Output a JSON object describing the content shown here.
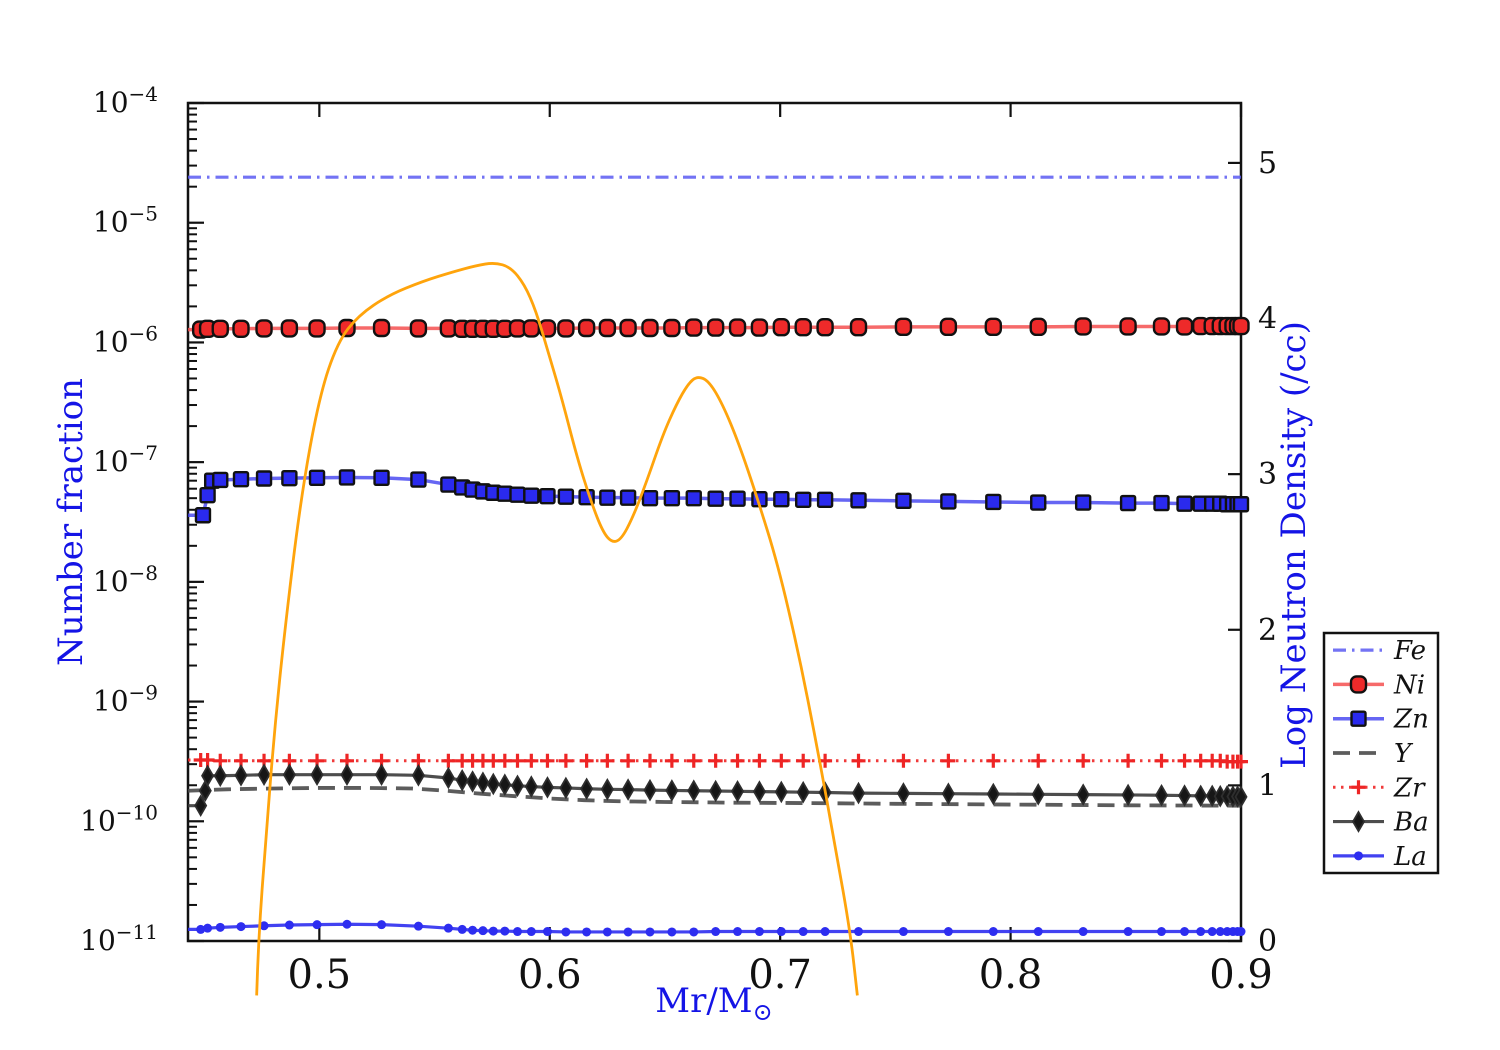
{
  "figure": {
    "background": "#ffffff"
  },
  "chart_data": {
    "type": "line",
    "title": "",
    "grid": false,
    "legend_position": "right-outside",
    "x_axis": {
      "label_main": "Mr/M",
      "label_sub": "⊙",
      "min": 0.443,
      "max": 0.9,
      "ticks": [
        0.5,
        0.6,
        0.7,
        0.8,
        0.9
      ],
      "tick_labels": [
        "0.5",
        "0.6",
        "0.7",
        "0.8",
        "0.9"
      ],
      "label_color": "#1414e6"
    },
    "y_axis_left": {
      "label": "Number fraction",
      "scale": "log",
      "min_exp": -11,
      "max_exp": -4,
      "tick_exponents": [
        -4,
        -5,
        -6,
        -7,
        -8,
        -9,
        -10,
        -11
      ],
      "label_color": "#1414e6"
    },
    "y_axis_right": {
      "label": "Log Neutron Density (/cc)",
      "scale": "linear",
      "min": 0,
      "max": 5.385,
      "ticks": [
        0,
        1,
        2,
        3,
        4,
        5
      ],
      "tick_labels": [
        "0",
        "1",
        "2",
        "3",
        "4",
        "5"
      ],
      "label_color": "#1414e6"
    },
    "series": [
      {
        "id": "fe",
        "name": "Fe",
        "axis": "left",
        "line": "dashdot",
        "marker": "none",
        "color": "#5b5bf2",
        "width": 3.2,
        "opacity": 0.85,
        "x": [
          0.443,
          0.9
        ],
        "y": [
          2.4e-05,
          2.4e-05
        ]
      },
      {
        "id": "ni",
        "name": "Ni",
        "axis": "left",
        "line": "solid",
        "marker": "circle",
        "color": "#f55050",
        "marker_color": "#ee2a2a",
        "edge_color": "#111111",
        "width": 3.5,
        "opacity": 0.85,
        "skip_first_marker": true,
        "x": [
          0.443,
          0.4485,
          0.4515,
          0.457,
          0.466,
          0.476,
          0.487,
          0.499,
          0.512,
          0.527,
          0.543,
          0.556,
          0.562,
          0.5665,
          0.571,
          0.5755,
          0.5805,
          0.586,
          0.592,
          0.599,
          0.607,
          0.616,
          0.625,
          0.634,
          0.6435,
          0.653,
          0.6625,
          0.672,
          0.6815,
          0.691,
          0.7005,
          0.71,
          0.7195,
          0.734,
          0.7535,
          0.773,
          0.7925,
          0.812,
          0.8315,
          0.851,
          0.8655,
          0.8755,
          0.8825,
          0.8875,
          0.891,
          0.894,
          0.8965,
          0.8985,
          0.9
        ],
        "y": [
          1.28e-06,
          1.28e-06,
          1.3e-06,
          1.3e-06,
          1.3e-06,
          1.31e-06,
          1.31e-06,
          1.31e-06,
          1.32e-06,
          1.32e-06,
          1.31e-06,
          1.31e-06,
          1.3e-06,
          1.3e-06,
          1.3e-06,
          1.3e-06,
          1.3e-06,
          1.31e-06,
          1.31e-06,
          1.31e-06,
          1.31e-06,
          1.32e-06,
          1.32e-06,
          1.32e-06,
          1.32e-06,
          1.32e-06,
          1.33e-06,
          1.33e-06,
          1.33e-06,
          1.33e-06,
          1.34e-06,
          1.34e-06,
          1.34e-06,
          1.34e-06,
          1.35e-06,
          1.35e-06,
          1.35e-06,
          1.35e-06,
          1.36e-06,
          1.36e-06,
          1.36e-06,
          1.36e-06,
          1.37e-06,
          1.37e-06,
          1.37e-06,
          1.37e-06,
          1.37e-06,
          1.37e-06,
          1.37e-06
        ]
      },
      {
        "id": "zn",
        "name": "Zn",
        "axis": "left",
        "line": "solid",
        "marker": "square",
        "color": "#4040f0",
        "marker_color": "#2a2aee",
        "edge_color": "#111111",
        "width": 3.5,
        "opacity": 0.8,
        "skip_first_marker": true,
        "x": [
          0.443,
          0.4495,
          0.4515,
          0.4535,
          0.457,
          0.466,
          0.476,
          0.487,
          0.499,
          0.512,
          0.527,
          0.543,
          0.556,
          0.562,
          0.5665,
          0.571,
          0.5755,
          0.5805,
          0.586,
          0.592,
          0.599,
          0.607,
          0.616,
          0.625,
          0.634,
          0.6435,
          0.653,
          0.6625,
          0.672,
          0.6815,
          0.691,
          0.7005,
          0.71,
          0.7195,
          0.734,
          0.7535,
          0.773,
          0.7925,
          0.812,
          0.8315,
          0.851,
          0.8655,
          0.8755,
          0.8825,
          0.8875,
          0.891,
          0.894,
          0.8965,
          0.8985,
          0.9
        ],
        "y": [
          3.6e-08,
          3.6e-08,
          5.3e-08,
          7e-08,
          7.1e-08,
          7.2e-08,
          7.3e-08,
          7.35e-08,
          7.4e-08,
          7.45e-08,
          7.4e-08,
          7.15e-08,
          6.5e-08,
          6.15e-08,
          5.9e-08,
          5.7e-08,
          5.55e-08,
          5.45e-08,
          5.35e-08,
          5.25e-08,
          5.2e-08,
          5.15e-08,
          5.1e-08,
          5.05e-08,
          5.05e-08,
          5e-08,
          5e-08,
          5e-08,
          4.95e-08,
          4.95e-08,
          4.9e-08,
          4.9e-08,
          4.85e-08,
          4.85e-08,
          4.8e-08,
          4.75e-08,
          4.7e-08,
          4.65e-08,
          4.6e-08,
          4.6e-08,
          4.55e-08,
          4.55e-08,
          4.5e-08,
          4.5e-08,
          4.5e-08,
          4.5e-08,
          4.45e-08,
          4.45e-08,
          4.45e-08,
          4.45e-08
        ]
      },
      {
        "id": "y",
        "name": "Y",
        "axis": "left",
        "line": "dashed",
        "marker": "none",
        "color": "#4a4a4a",
        "width": 3.8,
        "opacity": 0.9,
        "x": [
          0.443,
          0.46,
          0.48,
          0.5,
          0.52,
          0.54,
          0.555,
          0.57,
          0.585,
          0.6,
          0.615,
          0.63,
          0.65,
          0.68,
          0.71,
          0.75,
          0.8,
          0.85,
          0.9
        ],
        "y": [
          1.8e-10,
          1.85e-10,
          1.88e-10,
          1.9e-10,
          1.9e-10,
          1.88e-10,
          1.8e-10,
          1.7e-10,
          1.62e-10,
          1.55e-10,
          1.5e-10,
          1.47e-10,
          1.45e-10,
          1.43e-10,
          1.42e-10,
          1.4e-10,
          1.38e-10,
          1.36e-10,
          1.35e-10
        ]
      },
      {
        "id": "zr",
        "name": "Zr",
        "axis": "left",
        "line": "dotted",
        "marker": "plus",
        "color": "#ee2525",
        "marker_color": "#ee2525",
        "width": 3,
        "opacity": 0.9,
        "skip_first_marker": true,
        "x": [
          0.443,
          0.4485,
          0.4515,
          0.457,
          0.466,
          0.476,
          0.487,
          0.499,
          0.512,
          0.527,
          0.543,
          0.556,
          0.562,
          0.5665,
          0.571,
          0.5755,
          0.5805,
          0.586,
          0.592,
          0.599,
          0.607,
          0.616,
          0.625,
          0.634,
          0.6435,
          0.653,
          0.6625,
          0.672,
          0.6815,
          0.691,
          0.7005,
          0.71,
          0.7195,
          0.734,
          0.7535,
          0.773,
          0.7925,
          0.812,
          0.8315,
          0.851,
          0.8655,
          0.8755,
          0.8825,
          0.8875,
          0.891,
          0.894,
          0.8965,
          0.8985,
          0.9
        ],
        "y": [
          3.25e-10,
          3.25e-10,
          3.25e-10,
          3.2e-10,
          3.2e-10,
          3.2e-10,
          3.2e-10,
          3.2e-10,
          3.2e-10,
          3.2e-10,
          3.2e-10,
          3.2e-10,
          3.2e-10,
          3.2e-10,
          3.2e-10,
          3.2e-10,
          3.2e-10,
          3.2e-10,
          3.2e-10,
          3.2e-10,
          3.2e-10,
          3.2e-10,
          3.2e-10,
          3.2e-10,
          3.2e-10,
          3.2e-10,
          3.2e-10,
          3.2e-10,
          3.2e-10,
          3.2e-10,
          3.2e-10,
          3.2e-10,
          3.2e-10,
          3.2e-10,
          3.2e-10,
          3.2e-10,
          3.2e-10,
          3.2e-10,
          3.2e-10,
          3.2e-10,
          3.2e-10,
          3.2e-10,
          3.2e-10,
          3.2e-10,
          3.2e-10,
          3.15e-10,
          3.15e-10,
          3.15e-10,
          3.15e-10
        ]
      },
      {
        "id": "ba",
        "name": "Ba",
        "axis": "left",
        "line": "solid",
        "marker": "diamond",
        "color": "#3a3a3a",
        "marker_color": "#161616",
        "edge_color": "#2e2e2e",
        "width": 3.2,
        "opacity": 0.9,
        "skip_first_marker": true,
        "x": [
          0.443,
          0.4485,
          0.4505,
          0.4515,
          0.457,
          0.466,
          0.476,
          0.487,
          0.499,
          0.512,
          0.527,
          0.543,
          0.556,
          0.562,
          0.5665,
          0.571,
          0.5755,
          0.5805,
          0.586,
          0.592,
          0.599,
          0.607,
          0.616,
          0.625,
          0.634,
          0.6435,
          0.653,
          0.6625,
          0.672,
          0.6815,
          0.691,
          0.7005,
          0.71,
          0.7195,
          0.734,
          0.7535,
          0.773,
          0.7925,
          0.812,
          0.8315,
          0.851,
          0.8655,
          0.8755,
          0.8825,
          0.8875,
          0.891,
          0.894,
          0.8965,
          0.8985,
          0.9
        ],
        "y": [
          1.35e-10,
          1.35e-10,
          1.8e-10,
          2.4e-10,
          2.4e-10,
          2.42e-10,
          2.45e-10,
          2.45e-10,
          2.45e-10,
          2.45e-10,
          2.45e-10,
          2.42e-10,
          2.3e-10,
          2.2e-10,
          2.15e-10,
          2.1e-10,
          2.05e-10,
          2.02e-10,
          1.98e-10,
          1.95e-10,
          1.92e-10,
          1.9e-10,
          1.87e-10,
          1.85e-10,
          1.84e-10,
          1.82e-10,
          1.81e-10,
          1.8e-10,
          1.79e-10,
          1.78e-10,
          1.77e-10,
          1.76e-10,
          1.75e-10,
          1.74e-10,
          1.72e-10,
          1.71e-10,
          1.7e-10,
          1.69e-10,
          1.68e-10,
          1.67e-10,
          1.66e-10,
          1.65e-10,
          1.64e-10,
          1.63e-10,
          1.63e-10,
          1.62e-10,
          1.62e-10,
          1.61e-10,
          1.61e-10,
          1.6e-10
        ]
      },
      {
        "id": "la",
        "name": "La",
        "axis": "left",
        "line": "solid",
        "marker": "dot",
        "color": "#2d2df0",
        "marker_color": "#2d2df0",
        "width": 3.2,
        "opacity": 0.9,
        "skip_first_marker": true,
        "x": [
          0.443,
          0.4485,
          0.4515,
          0.457,
          0.466,
          0.476,
          0.487,
          0.499,
          0.512,
          0.527,
          0.543,
          0.556,
          0.562,
          0.5665,
          0.571,
          0.5755,
          0.5805,
          0.586,
          0.592,
          0.599,
          0.607,
          0.616,
          0.625,
          0.634,
          0.6435,
          0.653,
          0.6625,
          0.672,
          0.6815,
          0.691,
          0.7005,
          0.71,
          0.7195,
          0.734,
          0.7535,
          0.773,
          0.7925,
          0.812,
          0.8315,
          0.851,
          0.8655,
          0.8755,
          0.8825,
          0.8875,
          0.891,
          0.894,
          0.8965,
          0.8985,
          0.9
        ],
        "y": [
          1.25e-11,
          1.25e-11,
          1.28e-11,
          1.3e-11,
          1.32e-11,
          1.34e-11,
          1.36e-11,
          1.37e-11,
          1.38e-11,
          1.37e-11,
          1.33e-11,
          1.28e-11,
          1.25e-11,
          1.23e-11,
          1.22e-11,
          1.21e-11,
          1.21e-11,
          1.2e-11,
          1.2e-11,
          1.2e-11,
          1.19e-11,
          1.19e-11,
          1.19e-11,
          1.19e-11,
          1.19e-11,
          1.19e-11,
          1.19e-11,
          1.2e-11,
          1.2e-11,
          1.2e-11,
          1.2e-11,
          1.2e-11,
          1.2e-11,
          1.2e-11,
          1.2e-11,
          1.2e-11,
          1.2e-11,
          1.2e-11,
          1.2e-11,
          1.2e-11,
          1.2e-11,
          1.2e-11,
          1.2e-11,
          1.2e-11,
          1.2e-11,
          1.2e-11,
          1.2e-11,
          1.2e-11,
          1.2e-11
        ]
      },
      {
        "id": "neutron-density",
        "name": "",
        "legend": false,
        "axis": "right",
        "line": "solid",
        "marker": "none",
        "color": "#ffa40c",
        "width": 2.8,
        "opacity": 1,
        "smooth": true,
        "x": [
          0.4728,
          0.4735,
          0.477,
          0.4805,
          0.485,
          0.492,
          0.5,
          0.508,
          0.517,
          0.53,
          0.545,
          0.558,
          0.568,
          0.576,
          0.583,
          0.589,
          0.594,
          0.599,
          0.605,
          0.612,
          0.618,
          0.623,
          0.627,
          0.631,
          0.636,
          0.642,
          0.649,
          0.655,
          0.66,
          0.664,
          0.669,
          0.675,
          0.682,
          0.69,
          0.699,
          0.708,
          0.716,
          0.724,
          0.7305,
          0.7335
        ],
        "y": [
          -0.35,
          0.0,
          0.7,
          1.35,
          2.0,
          2.85,
          3.5,
          3.85,
          4.02,
          4.15,
          4.24,
          4.3,
          4.34,
          4.36,
          4.33,
          4.22,
          4.05,
          3.8,
          3.5,
          3.1,
          2.82,
          2.63,
          2.56,
          2.58,
          2.72,
          2.95,
          3.25,
          3.45,
          3.58,
          3.63,
          3.6,
          3.45,
          3.2,
          2.85,
          2.42,
          1.85,
          1.25,
          0.6,
          0.05,
          -0.35
        ]
      }
    ],
    "legend_entries": [
      "Fe",
      "Ni",
      "Zn",
      "Y",
      "Zr",
      "Ba",
      "La"
    ]
  }
}
